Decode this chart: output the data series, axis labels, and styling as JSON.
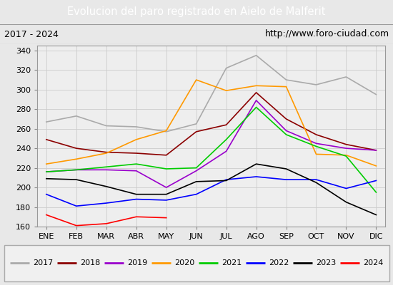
{
  "title": "Evolucion del paro registrado en Aielo de Malferit",
  "subtitle_left": "2017 - 2024",
  "subtitle_right": "http://www.foro-ciudad.com",
  "months": [
    "ENE",
    "FEB",
    "MAR",
    "ABR",
    "MAY",
    "JUN",
    "JUL",
    "AGO",
    "SEP",
    "OCT",
    "NOV",
    "DIC"
  ],
  "ylim": [
    160,
    345
  ],
  "yticks": [
    160,
    180,
    200,
    220,
    240,
    260,
    280,
    300,
    320,
    340
  ],
  "series": {
    "2017": {
      "color": "#aaaaaa",
      "values": [
        267,
        273,
        263,
        262,
        257,
        265,
        322,
        335,
        310,
        305,
        313,
        295
      ]
    },
    "2018": {
      "color": "#8b0000",
      "values": [
        249,
        240,
        236,
        235,
        233,
        257,
        264,
        297,
        270,
        254,
        244,
        238
      ]
    },
    "2019": {
      "color": "#9900cc",
      "values": [
        216,
        218,
        218,
        217,
        200,
        217,
        237,
        289,
        258,
        245,
        240,
        238
      ]
    },
    "2020": {
      "color": "#ff9900",
      "values": [
        224,
        229,
        235,
        249,
        258,
        310,
        299,
        304,
        303,
        234,
        233,
        222
      ]
    },
    "2021": {
      "color": "#00cc00",
      "values": [
        216,
        218,
        221,
        224,
        219,
        220,
        249,
        282,
        254,
        242,
        232,
        195
      ]
    },
    "2022": {
      "color": "#0000ff",
      "values": [
        193,
        181,
        184,
        188,
        187,
        193,
        208,
        211,
        208,
        208,
        199,
        207
      ]
    },
    "2023": {
      "color": "#000000",
      "values": [
        209,
        208,
        201,
        193,
        193,
        206,
        207,
        224,
        219,
        205,
        185,
        172
      ]
    },
    "2024": {
      "color": "#ff0000",
      "values": [
        172,
        161,
        163,
        170,
        169,
        null,
        null,
        null,
        null,
        null,
        null,
        null
      ]
    }
  },
  "bg_color": "#e8e8e8",
  "plot_bg_color": "#eeeeee",
  "title_bg_color": "#4477cc",
  "title_text_color": "#ffffff",
  "subtitle_bg_color": "#e0e0e0",
  "grid_color": "#cccccc",
  "legend_bg_color": "#f0f0f0",
  "legend_border_color": "#aaaaaa"
}
